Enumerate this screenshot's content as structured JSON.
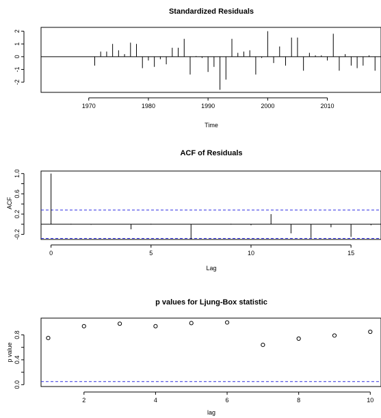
{
  "chart_data": [
    {
      "type": "bar",
      "title": "Standardized Residuals",
      "xlabel": "Time",
      "ylabel": "",
      "xlim": [
        1962,
        2019
      ],
      "ylim": [
        -2.8,
        2.3
      ],
      "xticks": [
        1970,
        1980,
        1990,
        2000,
        2010
      ],
      "yticks": [
        -2,
        -1,
        0,
        1,
        2
      ],
      "x": [
        1971,
        1972,
        1973,
        1974,
        1975,
        1976,
        1977,
        1978,
        1979,
        1980,
        1981,
        1982,
        1983,
        1984,
        1985,
        1986,
        1987,
        1988,
        1989,
        1990,
        1991,
        1992,
        1993,
        1994,
        1995,
        1996,
        1997,
        1998,
        1999,
        2000,
        2001,
        2002,
        2003,
        2004,
        2005,
        2006,
        2007,
        2008,
        2009,
        2010,
        2011,
        2012,
        2013,
        2014,
        2015,
        2016,
        2017,
        2018
      ],
      "values": [
        -0.7,
        0.4,
        0.4,
        1.0,
        0.5,
        0.2,
        1.1,
        1.0,
        -0.9,
        -0.3,
        -0.8,
        -0.2,
        -0.6,
        0.7,
        0.7,
        1.4,
        -1.4,
        0.05,
        -0.1,
        -1.2,
        -0.8,
        -2.6,
        -1.8,
        1.4,
        0.3,
        0.4,
        0.5,
        -1.4,
        -0.1,
        2.0,
        -0.5,
        0.8,
        -0.7,
        1.5,
        1.5,
        -1.1,
        0.3,
        0.1,
        0.1,
        -0.3,
        1.8,
        -1.1,
        0.2,
        -0.7,
        -0.9,
        -0.7,
        0.1,
        -1.1
      ]
    },
    {
      "type": "bar",
      "title": "ACF of Residuals",
      "xlabel": "Lag",
      "ylabel": "ACF",
      "xlim": [
        -0.5,
        16.5
      ],
      "ylim": [
        -0.3,
        1.05
      ],
      "xticks": [
        0,
        5,
        10,
        15
      ],
      "yticks": [
        -0.2,
        0.2,
        0.6,
        1.0
      ],
      "ytick_labels": [
        "-0.2",
        "0.2",
        "0.6",
        "1.0"
      ],
      "extra_ytick_values": [
        0.0,
        0.4,
        0.8
      ],
      "confidence_band": [
        -0.28,
        0.28
      ],
      "lags": [
        0,
        1,
        2,
        3,
        4,
        5,
        6,
        7,
        8,
        9,
        10,
        11,
        12,
        13,
        14,
        15,
        16
      ],
      "values": [
        1.0,
        0.01,
        -0.01,
        0.0,
        -0.1,
        0.01,
        0.0,
        -0.29,
        0.0,
        0.01,
        -0.02,
        0.2,
        -0.18,
        -0.27,
        -0.06,
        -0.25,
        -0.02
      ]
    },
    {
      "type": "scatter",
      "title": "p values for Ljung-Box statistic",
      "xlabel": "lag",
      "ylabel": "p value",
      "xlim": [
        0.8,
        10.3
      ],
      "ylim": [
        -0.03,
        1.07
      ],
      "xticks": [
        2,
        4,
        6,
        8,
        10
      ],
      "yticks": [
        0.0,
        0.4,
        0.8
      ],
      "ytick_labels": [
        "0.0",
        "0.4",
        "0.8"
      ],
      "extra_ytick_values": [
        0.2,
        0.6
      ],
      "significance_line": 0.05,
      "x": [
        1,
        2,
        3,
        4,
        5,
        6,
        7,
        8,
        9,
        10
      ],
      "values": [
        0.75,
        0.94,
        0.98,
        0.94,
        0.99,
        1.0,
        0.64,
        0.74,
        0.79,
        0.85
      ]
    }
  ],
  "colors": {
    "axis": "#000000",
    "dashed_line": "#2a2ae0",
    "background": "#ffffff"
  }
}
